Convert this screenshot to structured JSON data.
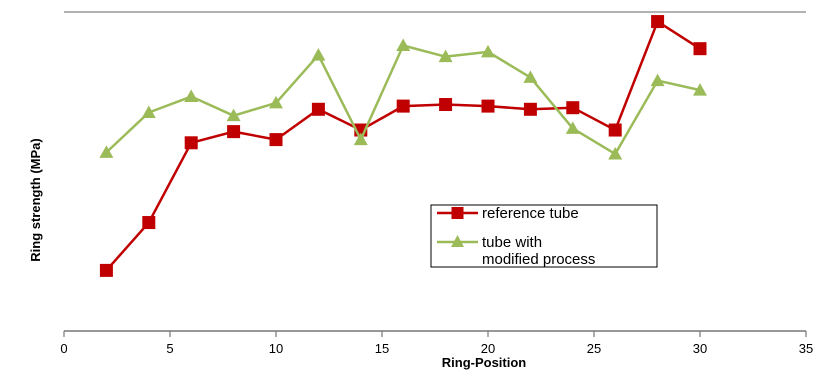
{
  "chart_data": {
    "type": "line",
    "xlabel": "Ring-Position",
    "ylabel": "Ring strength (MPa)",
    "xlim": [
      0,
      35
    ],
    "xticks": [
      0,
      5,
      10,
      15,
      20,
      25,
      30,
      35
    ],
    "ylim": [
      0,
      10
    ],
    "y_tick_labels_shown": false,
    "grid": false,
    "legend_position": "lower-right",
    "series": [
      {
        "name": "reference tube",
        "color": "#c00000",
        "marker": "square",
        "x": [
          2,
          4,
          6,
          8,
          10,
          12,
          14,
          16,
          18,
          20,
          22,
          24,
          26,
          28,
          30
        ],
        "y": [
          1.9,
          3.4,
          5.9,
          6.25,
          6.0,
          6.95,
          6.3,
          7.05,
          7.1,
          7.05,
          6.95,
          7.0,
          6.3,
          9.7,
          8.85
        ]
      },
      {
        "name": "tube with modified process",
        "name_lines": [
          "tube with",
          "modified process"
        ],
        "color": "#9bbb59",
        "marker": "triangle",
        "x": [
          2,
          4,
          6,
          8,
          10,
          12,
          14,
          16,
          18,
          20,
          22,
          24,
          26,
          28,
          30
        ],
        "y": [
          5.6,
          6.85,
          7.35,
          6.75,
          7.15,
          8.65,
          6.0,
          8.95,
          8.6,
          8.75,
          7.95,
          6.35,
          5.55,
          7.85,
          7.55
        ]
      }
    ]
  }
}
